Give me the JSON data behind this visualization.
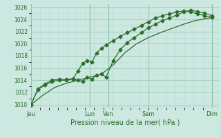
{
  "xlabel": "Pression niveau de la mer( hPa )",
  "bg_color": "#cce8e0",
  "grid_major_color": "#99ccbb",
  "grid_minor_color": "#bbddd4",
  "line_color": "#2d6e2d",
  "vline_color": "#4a8a6a",
  "ylim": [
    1009.5,
    1026.5
  ],
  "yticks": [
    1010,
    1012,
    1014,
    1016,
    1018,
    1020,
    1022,
    1024,
    1026
  ],
  "xtick_labels": [
    "Jeu",
    "",
    "Lun",
    "Ven",
    "",
    "Sam",
    "",
    "Dim"
  ],
  "xtick_positions": [
    0,
    1,
    2.5,
    3.3,
    4,
    5,
    6.2,
    7.7
  ],
  "vline_positions": [
    0,
    2.5,
    3.3,
    5.0,
    7.7
  ],
  "xlim": [
    0,
    8.0
  ],
  "series1_x": [
    0,
    0.3,
    0.6,
    0.9,
    1.2,
    1.5,
    1.8,
    2.0,
    2.2,
    2.4,
    2.6,
    2.8,
    3.0,
    3.2,
    3.5,
    3.8,
    4.1,
    4.4,
    4.7,
    5.0,
    5.3,
    5.6,
    5.9,
    6.2,
    6.5,
    6.8,
    7.1,
    7.4,
    7.7
  ],
  "series1_y": [
    1010.0,
    1012.5,
    1013.2,
    1013.8,
    1014.0,
    1014.0,
    1014.2,
    1014.0,
    1013.8,
    1014.5,
    1014.2,
    1014.8,
    1015.0,
    1014.5,
    1017.2,
    1019.0,
    1020.2,
    1021.0,
    1021.8,
    1022.6,
    1023.2,
    1023.8,
    1024.2,
    1024.7,
    1025.2,
    1025.5,
    1025.3,
    1025.0,
    1024.6
  ],
  "series2_x": [
    0,
    0.3,
    0.6,
    0.9,
    1.2,
    1.5,
    1.8,
    2.0,
    2.2,
    2.4,
    2.6,
    2.8,
    3.0,
    3.2,
    3.5,
    3.8,
    4.1,
    4.4,
    4.7,
    5.0,
    5.3,
    5.6,
    5.9,
    6.2,
    6.5,
    6.8,
    7.1,
    7.4,
    7.7
  ],
  "series2_y": [
    1010.0,
    1012.6,
    1013.4,
    1014.0,
    1014.2,
    1014.1,
    1014.3,
    1015.5,
    1016.8,
    1017.2,
    1017.0,
    1018.5,
    1019.2,
    1019.8,
    1020.5,
    1021.2,
    1021.8,
    1022.4,
    1023.0,
    1023.6,
    1024.2,
    1024.6,
    1024.9,
    1025.2,
    1025.4,
    1025.2,
    1024.9,
    1024.6,
    1024.3
  ],
  "series3_x": [
    0,
    0.5,
    1.0,
    1.5,
    2.0,
    2.5,
    3.0,
    3.5,
    4.0,
    4.5,
    5.0,
    5.5,
    6.0,
    6.5,
    7.0,
    7.7
  ],
  "series3_y": [
    1010.0,
    1011.5,
    1012.8,
    1013.5,
    1014.0,
    1014.5,
    1015.0,
    1016.5,
    1018.5,
    1020.0,
    1021.0,
    1021.8,
    1022.5,
    1023.2,
    1023.8,
    1024.3
  ],
  "marker_size": 2.5,
  "line_width": 0.9
}
